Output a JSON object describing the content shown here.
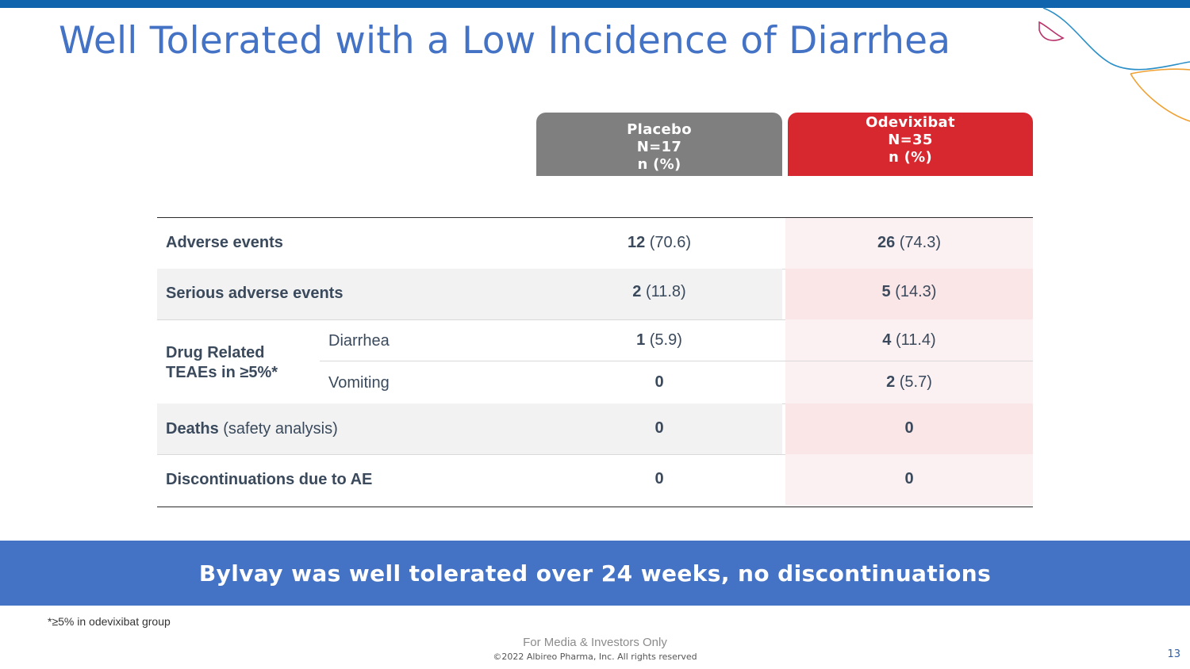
{
  "slide": {
    "title": "Well Tolerated with a Low Incidence of Diarrhea",
    "accent_color": "#4472c4",
    "top_bar_color": "#0f64ad"
  },
  "table": {
    "columns": [
      {
        "name": "Placebo",
        "n": "N=17",
        "unit": "n (%)",
        "color": "#7f7f7f"
      },
      {
        "name": "Odevixibat",
        "n": "N=35",
        "unit": "n (%)",
        "color": "#d7282f"
      }
    ],
    "rows": {
      "adverse_events": {
        "label": "Adverse events",
        "placebo": {
          "count": "12",
          "pct": " (70.6)"
        },
        "odevixibat": {
          "count": "26",
          "pct": " (74.3)"
        }
      },
      "serious_adverse_events": {
        "label": "Serious adverse events",
        "placebo": {
          "count": "2",
          "pct": " (11.8)"
        },
        "odevixibat": {
          "count": "5",
          "pct": " (14.3)"
        }
      },
      "drug_related": {
        "label_line1": "Drug Related",
        "label_line2": "TEAEs in ≥5%*",
        "diarrhea": {
          "label": "Diarrhea",
          "placebo": {
            "count": "1",
            "pct": " (5.9)"
          },
          "odevixibat": {
            "count": "4",
            "pct": " (11.4)"
          }
        },
        "vomiting": {
          "label": "Vomiting",
          "placebo": {
            "count": "0",
            "pct": ""
          },
          "odevixibat": {
            "count": "2",
            "pct": " (5.7)"
          }
        }
      },
      "deaths": {
        "label_bold": "Deaths",
        "label_normal": " (safety analysis)",
        "placebo": {
          "count": "0",
          "pct": ""
        },
        "odevixibat": {
          "count": "0",
          "pct": ""
        }
      },
      "discontinuations": {
        "label": "Discontinuations due to AE",
        "placebo": {
          "count": "0",
          "pct": ""
        },
        "odevixibat": {
          "count": "0",
          "pct": ""
        }
      }
    }
  },
  "banner": {
    "text": "Bylvay was well tolerated over 24 weeks, no discontinuations"
  },
  "footer": {
    "footnote": "*≥5% in odevixibat group",
    "audience": "For Media & Investors Only",
    "copyright": "©2022 Albireo Pharma, Inc. All rights reserved",
    "page_number": "13"
  }
}
